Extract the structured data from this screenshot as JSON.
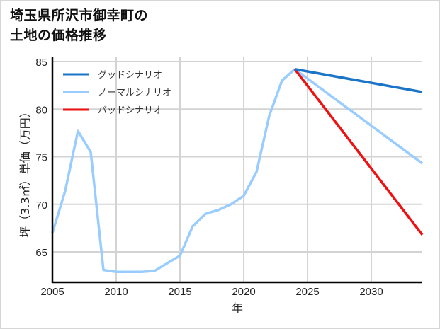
{
  "title_line1": "埼玉県所沢市御幸町の",
  "title_line2": "土地の価格推移",
  "chart_data": {
    "type": "line",
    "title": "埼玉県所沢市御幸町の土地の価格推移",
    "xlabel": "年",
    "ylabel": "坪（3.3㎡）単価（万円）",
    "xlim": [
      2005,
      2034
    ],
    "ylim": [
      62.0,
      85.4
    ],
    "xticks": [
      2005,
      2010,
      2015,
      2020,
      2025,
      2030
    ],
    "yticks": [
      65,
      70,
      75,
      80,
      85
    ],
    "grid": true,
    "legend_position": "upper left",
    "history": {
      "x": [
        2005,
        2006,
        2007,
        2008,
        2009,
        2010,
        2011,
        2012,
        2013,
        2014,
        2015,
        2016,
        2017,
        2018,
        2019,
        2020,
        2021,
        2022,
        2023,
        2024
      ],
      "values": [
        67.0,
        71.4,
        77.7,
        75.5,
        63.1,
        62.9,
        62.9,
        62.9,
        63.0,
        63.8,
        64.6,
        67.7,
        69.0,
        69.4,
        70.0,
        70.9,
        73.4,
        79.3,
        83.0,
        84.2
      ]
    },
    "series": [
      {
        "name": "グッドシナリオ",
        "color": "#1a74c8",
        "x": [
          2024,
          2034
        ],
        "values": [
          84.2,
          81.8
        ]
      },
      {
        "name": "ノーマルシナリオ",
        "color": "#99ccff",
        "x": [
          2024,
          2034
        ],
        "values": [
          84.2,
          74.3
        ]
      },
      {
        "name": "バッドシナリオ",
        "color": "#ee1111",
        "x": [
          2024,
          2034
        ],
        "values": [
          84.2,
          66.8
        ]
      }
    ]
  }
}
